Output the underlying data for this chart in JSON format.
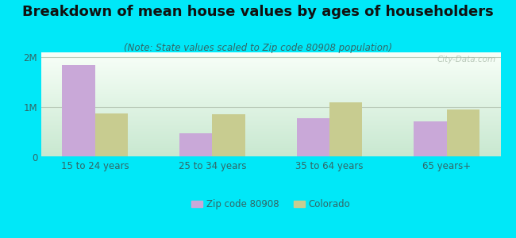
{
  "title": "Breakdown of mean house values by ages of householders",
  "subtitle": "(Note: State values scaled to Zip code 80908 population)",
  "categories": [
    "15 to 24 years",
    "25 to 34 years",
    "35 to 64 years",
    "65 years+"
  ],
  "zip_values": [
    1850000,
    480000,
    780000,
    720000
  ],
  "state_values": [
    870000,
    860000,
    1090000,
    960000
  ],
  "zip_color": "#c9a8d8",
  "state_color": "#c8cc90",
  "background_outer": "#00e8f8",
  "background_inner_top": "#f0fff0",
  "background_inner_bottom": "#d0ede0",
  "ylim": [
    0,
    2100000
  ],
  "yticks": [
    0,
    1000000,
    2000000
  ],
  "ytick_labels": [
    "0",
    "1M",
    "2M"
  ],
  "legend_zip": "Zip code 80908",
  "legend_state": "Colorado",
  "bar_width": 0.28,
  "title_fontsize": 13,
  "subtitle_fontsize": 8.5,
  "tick_fontsize": 8.5,
  "legend_fontsize": 8.5,
  "grid_color": "#bbccbb",
  "watermark": "City-Data.com",
  "title_color": "#111111",
  "subtitle_color": "#336666",
  "tick_color": "#336666"
}
